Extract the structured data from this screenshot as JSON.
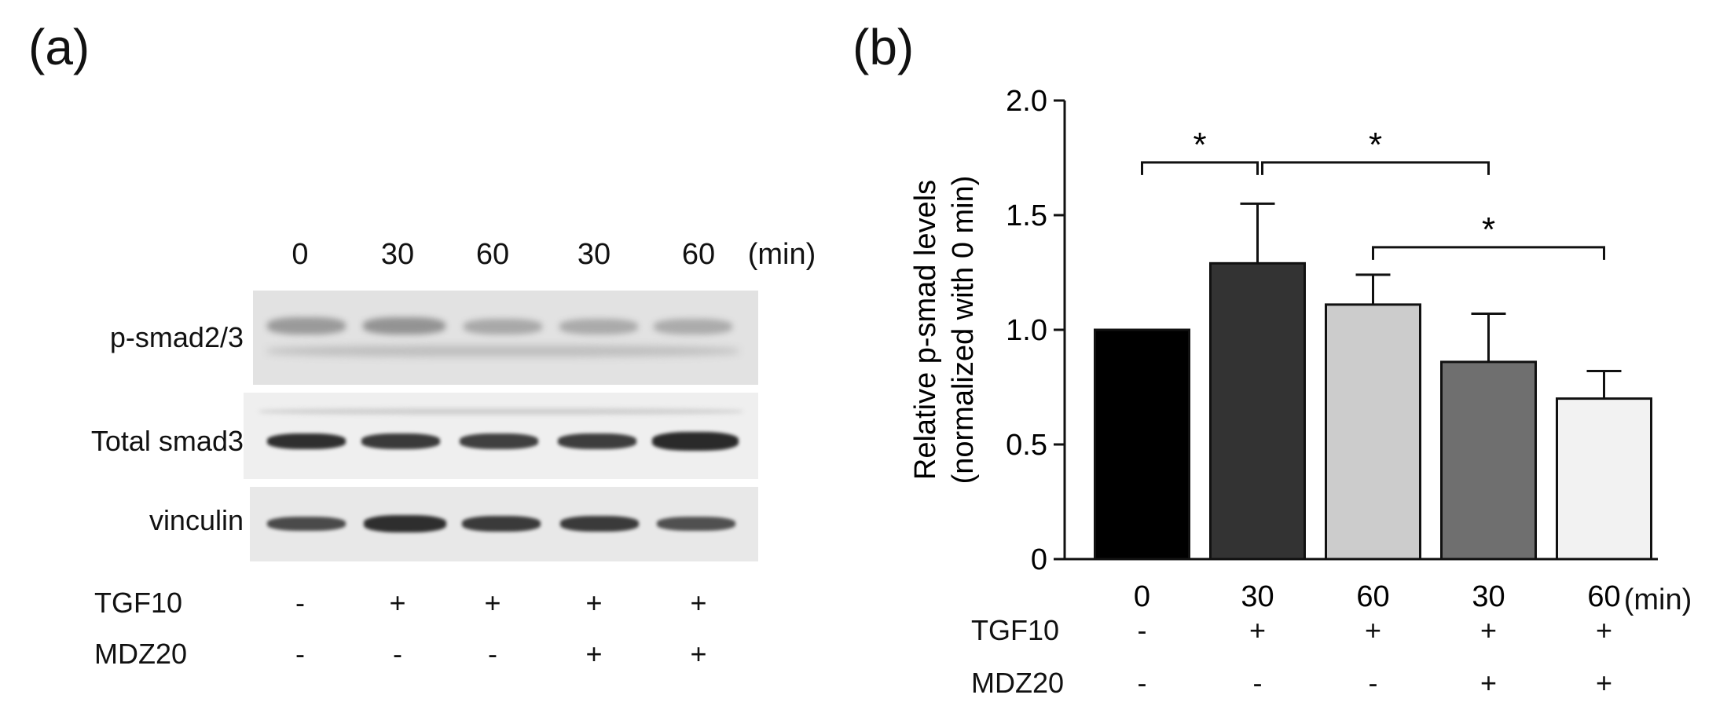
{
  "panel_a": {
    "label": "(a)",
    "lane_times": [
      "0",
      "30",
      "60",
      "30",
      "60"
    ],
    "unit": "(min)",
    "rows": [
      "p-smad2/3",
      "Total smad3",
      "vinculin"
    ],
    "tgf_label": "TGF10",
    "mdz_label": "MDZ20",
    "tgf_signs": [
      "-",
      "+",
      "+",
      "+",
      "+"
    ],
    "mdz_signs": [
      "-",
      "-",
      "-",
      "+",
      "+"
    ]
  },
  "panel_b": {
    "label": "(b)",
    "unit": "(min)",
    "tgf_label": "TGF10",
    "mdz_label": "MDZ20",
    "tgf_signs": [
      "-",
      "+",
      "+",
      "+",
      "+"
    ],
    "mdz_signs": [
      "-",
      "-",
      "-",
      "+",
      "+"
    ]
  },
  "chart_data": {
    "type": "bar",
    "categories": [
      "0",
      "30",
      "60",
      "30",
      "60"
    ],
    "values": [
      1.0,
      1.29,
      1.11,
      0.86,
      0.7
    ],
    "errors": [
      0.0,
      0.26,
      0.13,
      0.21,
      0.12
    ],
    "bar_colors": [
      "#000000",
      "#333333",
      "#cccccc",
      "#6f6f6f",
      "#f2f2f2"
    ],
    "ylabel": "Relative p-smad levels",
    "ylabel2": "(normalized with 0 min)",
    "ylim": [
      0,
      2.0
    ],
    "yticks": [
      "0",
      "0.5",
      "1.0",
      "1.5",
      "2.0"
    ],
    "ytick_values": [
      0,
      0.5,
      1.0,
      1.5,
      2.0
    ],
    "significance": [
      {
        "from": 0,
        "to": 1,
        "label": "*"
      },
      {
        "from": 1,
        "to": 3,
        "label": "*"
      },
      {
        "from": 2,
        "to": 4,
        "label": "*"
      }
    ]
  }
}
